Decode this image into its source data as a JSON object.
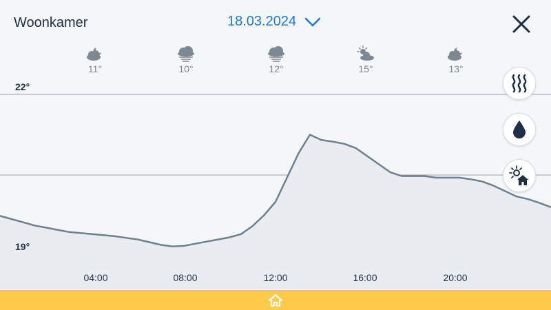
{
  "header": {
    "room": "Woonkamer",
    "date": "18.03.2024",
    "date_icon": "chevron-down-icon",
    "close_icon": "close-icon"
  },
  "forecast": [
    {
      "time": "04:00",
      "icon": "partly-cloudy-night-icon",
      "temp": "11°"
    },
    {
      "time": "08:00",
      "icon": "fog-icon",
      "temp": "10°"
    },
    {
      "time": "12:00",
      "icon": "fog-icon",
      "temp": "12°"
    },
    {
      "time": "16:00",
      "icon": "partly-sunny-icon",
      "temp": "15°"
    },
    {
      "time": "20:00",
      "icon": "partly-cloudy-night-icon",
      "temp": "13°"
    }
  ],
  "side_buttons": [
    {
      "icon": "heating-icon"
    },
    {
      "icon": "humidity-drop-icon"
    },
    {
      "icon": "outdoor-sun-home-icon"
    }
  ],
  "footer": {
    "icon": "home-icon"
  },
  "colors": {
    "accent": "#1f78d1",
    "line": "#6e8090",
    "fill": "#e9edf1",
    "footer": "#ffc94a",
    "text": "#1f2f45"
  },
  "chart_data": {
    "type": "area",
    "ylim": [
      19,
      22
    ],
    "ytick_labels": [
      "22°",
      "19°"
    ],
    "xlim": [
      "00:00",
      "24:00"
    ],
    "xtick_labels": [
      "04:00",
      "08:00",
      "12:00",
      "16:00",
      "20:00"
    ],
    "x": [
      "00:00",
      "00:30",
      "01:00",
      "01:30",
      "02:00",
      "02:30",
      "03:00",
      "03:30",
      "04:00",
      "04:30",
      "05:00",
      "05:30",
      "06:00",
      "06:30",
      "07:00",
      "07:30",
      "08:00",
      "08:30",
      "09:00",
      "09:30",
      "10:00",
      "10:30",
      "11:00",
      "11:30",
      "12:00",
      "12:30",
      "13:00",
      "13:30",
      "14:00",
      "14:30",
      "15:00",
      "15:30",
      "16:00",
      "16:30",
      "17:00",
      "17:30",
      "18:00",
      "18:30",
      "19:00",
      "19:30",
      "20:00",
      "20:30",
      "21:00",
      "21:30",
      "22:00",
      "22:30",
      "23:00",
      "23:30",
      "24:00"
    ],
    "values": [
      19.74,
      19.68,
      19.62,
      19.56,
      19.52,
      19.48,
      19.44,
      19.42,
      19.4,
      19.38,
      19.36,
      19.33,
      19.3,
      19.25,
      19.2,
      19.17,
      19.18,
      19.22,
      19.26,
      19.3,
      19.34,
      19.4,
      19.55,
      19.75,
      20.0,
      20.45,
      20.9,
      21.25,
      21.15,
      21.12,
      21.08,
      21.0,
      20.85,
      20.7,
      20.55,
      20.48,
      20.48,
      20.48,
      20.45,
      20.45,
      20.45,
      20.42,
      20.38,
      20.3,
      20.2,
      20.1,
      20.05,
      19.98,
      19.9
    ],
    "grid": true
  }
}
